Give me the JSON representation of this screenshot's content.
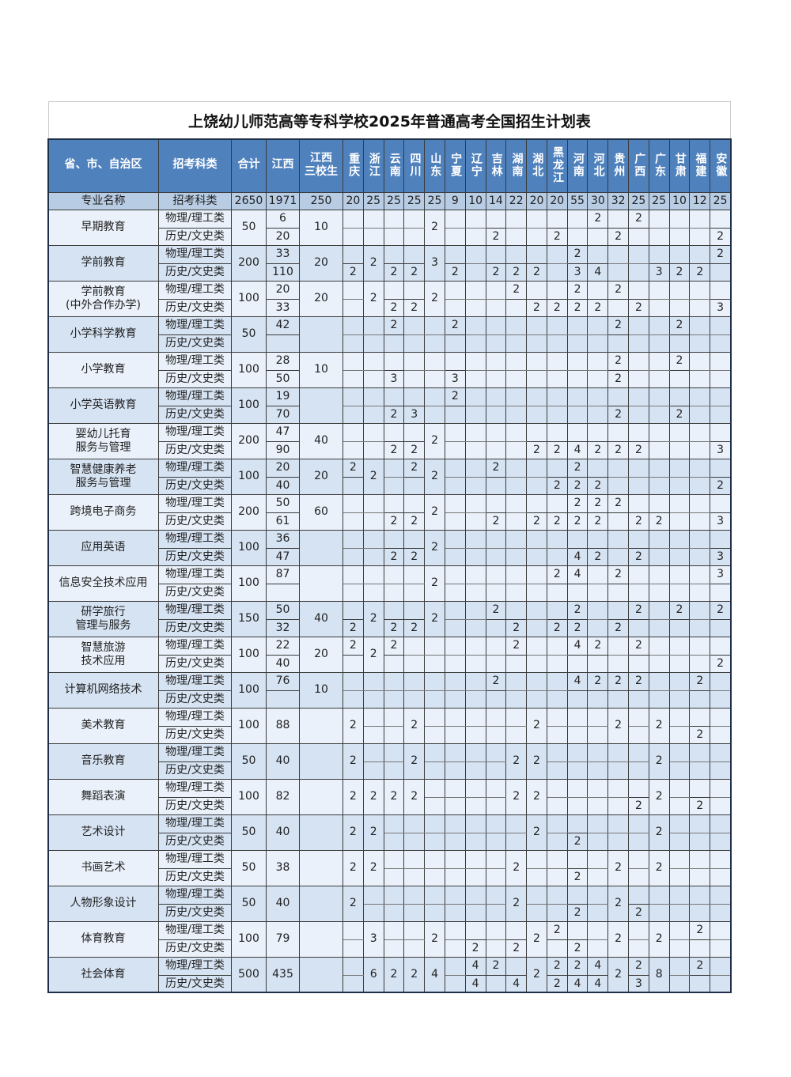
{
  "title": "上饶幼儿师范高等专科学校2025年普通高考全国招生计划表",
  "header": {
    "region": "省、市、自治区",
    "subject": "招考科类",
    "total": "合计",
    "jiangxi": "江西",
    "three_school": "江西\n三校生",
    "provinces": [
      "重庆",
      "浙江",
      "云南",
      "四川",
      "山东",
      "宁夏",
      "辽宁",
      "吉林",
      "湖南",
      "湖北",
      "黑龙江",
      "河南",
      "河北",
      "贵州",
      "广西",
      "广东",
      "甘肃",
      "福建",
      "安徽"
    ]
  },
  "summary": {
    "label": "专业名称",
    "subject": "招考科类",
    "total": 2650,
    "jiangxi": 1971,
    "three_school": 250,
    "provinces": [
      20,
      25,
      25,
      25,
      25,
      9,
      10,
      14,
      22,
      20,
      20,
      55,
      30,
      32,
      25,
      25,
      10,
      12,
      25
    ]
  },
  "subjects": [
    "物理/理工类",
    "历史/文史类"
  ],
  "majors": [
    {
      "name": "早期教育",
      "total": 50,
      "jiangxi": [
        6,
        20
      ],
      "three_school": 10,
      "cols": [
        null,
        null,
        null,
        null,
        2,
        null,
        null,
        [
          null,
          2
        ],
        null,
        null,
        [
          null,
          2
        ],
        null,
        [
          2,
          null
        ],
        [
          null,
          2
        ],
        [
          2,
          null
        ],
        null,
        null,
        null,
        [
          null,
          2
        ]
      ]
    },
    {
      "name": "学前教育",
      "total": 200,
      "jiangxi": [
        33,
        110
      ],
      "three_school": 20,
      "cols": [
        [
          null,
          2
        ],
        2,
        [
          null,
          2
        ],
        [
          null,
          2
        ],
        3,
        [
          null,
          2
        ],
        null,
        [
          null,
          2
        ],
        [
          null,
          2
        ],
        [
          null,
          2
        ],
        null,
        [
          2,
          3
        ],
        [
          null,
          4
        ],
        null,
        null,
        [
          null,
          3
        ],
        [
          null,
          2
        ],
        [
          null,
          2
        ],
        [
          2,
          null
        ]
      ]
    },
    {
      "name": "学前教育\n(中外合作办学)",
      "total": 100,
      "jiangxi": [
        20,
        33
      ],
      "three_school": 20,
      "cols": [
        null,
        2,
        [
          null,
          2
        ],
        [
          null,
          2
        ],
        2,
        null,
        null,
        null,
        [
          2,
          null
        ],
        [
          null,
          2
        ],
        [
          null,
          2
        ],
        [
          2,
          2
        ],
        [
          null,
          2
        ],
        [
          2,
          null
        ],
        [
          null,
          2
        ],
        null,
        null,
        null,
        [
          null,
          3
        ]
      ]
    },
    {
      "name": "小学科学教育",
      "total": 50,
      "jiangxi": [
        42,
        null
      ],
      "three_school": null,
      "cols": [
        null,
        null,
        [
          2,
          null
        ],
        null,
        null,
        [
          2,
          null
        ],
        null,
        null,
        null,
        null,
        null,
        null,
        null,
        [
          2,
          null
        ],
        null,
        null,
        [
          2,
          null
        ],
        null,
        null
      ]
    },
    {
      "name": "小学教育",
      "total": 100,
      "jiangxi": [
        28,
        50
      ],
      "three_school": 10,
      "cols": [
        null,
        null,
        [
          null,
          3
        ],
        null,
        null,
        [
          null,
          3
        ],
        null,
        null,
        null,
        null,
        null,
        null,
        null,
        [
          2,
          2
        ],
        null,
        null,
        [
          2,
          null
        ],
        null,
        null
      ]
    },
    {
      "name": "小学英语教育",
      "total": 100,
      "jiangxi": [
        19,
        70
      ],
      "three_school": null,
      "cols": [
        null,
        null,
        [
          null,
          2
        ],
        [
          null,
          3
        ],
        null,
        [
          2,
          null
        ],
        null,
        null,
        null,
        null,
        null,
        null,
        null,
        [
          null,
          2
        ],
        null,
        null,
        [
          null,
          2
        ],
        null,
        null
      ]
    },
    {
      "name": "婴幼儿托育\n服务与管理",
      "total": 200,
      "jiangxi": [
        47,
        90
      ],
      "three_school": 40,
      "cols": [
        null,
        null,
        [
          null,
          2
        ],
        [
          null,
          2
        ],
        2,
        null,
        null,
        null,
        null,
        [
          null,
          2
        ],
        [
          null,
          2
        ],
        [
          null,
          4
        ],
        [
          null,
          2
        ],
        [
          null,
          2
        ],
        [
          null,
          2
        ],
        null,
        null,
        null,
        [
          null,
          3
        ]
      ]
    },
    {
      "name": "智慧健康养老\n服务与管理",
      "total": 100,
      "jiangxi": [
        20,
        40
      ],
      "three_school": 20,
      "cols": [
        [
          2,
          null
        ],
        2,
        null,
        [
          2,
          null
        ],
        2,
        null,
        null,
        [
          2,
          null
        ],
        null,
        null,
        [
          null,
          2
        ],
        [
          2,
          2
        ],
        [
          null,
          2
        ],
        null,
        null,
        null,
        null,
        null,
        [
          null,
          2
        ]
      ]
    },
    {
      "name": "跨境电子商务",
      "total": 200,
      "jiangxi": [
        50,
        61
      ],
      "three_school": 60,
      "cols": [
        null,
        null,
        [
          null,
          2
        ],
        [
          null,
          2
        ],
        2,
        null,
        null,
        [
          null,
          2
        ],
        null,
        [
          null,
          2
        ],
        [
          null,
          2
        ],
        [
          2,
          2
        ],
        [
          2,
          2
        ],
        [
          2,
          null
        ],
        [
          null,
          2
        ],
        [
          null,
          2
        ],
        null,
        null,
        [
          null,
          3
        ]
      ]
    },
    {
      "name": "应用英语",
      "total": 100,
      "jiangxi": [
        36,
        47
      ],
      "three_school": null,
      "cols": [
        null,
        null,
        [
          null,
          2
        ],
        [
          null,
          2
        ],
        2,
        null,
        null,
        null,
        null,
        null,
        null,
        [
          null,
          4
        ],
        [
          null,
          2
        ],
        null,
        [
          null,
          2
        ],
        null,
        null,
        null,
        [
          null,
          3
        ]
      ]
    },
    {
      "name": "信息安全技术应用",
      "total": 100,
      "jiangxi": [
        87,
        null
      ],
      "three_school": null,
      "cols": [
        null,
        null,
        null,
        null,
        2,
        null,
        null,
        null,
        null,
        null,
        [
          2,
          null
        ],
        [
          4,
          null
        ],
        null,
        [
          2,
          null
        ],
        null,
        null,
        null,
        null,
        [
          3,
          null
        ]
      ]
    },
    {
      "name": "研学旅行\n管理与服务",
      "total": 150,
      "jiangxi": [
        50,
        32
      ],
      "three_school": 40,
      "cols": [
        [
          null,
          2
        ],
        2,
        [
          null,
          2
        ],
        [
          null,
          2
        ],
        2,
        null,
        null,
        [
          2,
          null
        ],
        [
          null,
          2
        ],
        null,
        [
          null,
          2
        ],
        [
          2,
          2
        ],
        null,
        [
          null,
          2
        ],
        [
          2,
          null
        ],
        null,
        [
          2,
          null
        ],
        null,
        [
          2,
          null
        ]
      ]
    },
    {
      "name": "智慧旅游\n技术应用",
      "total": 100,
      "jiangxi": [
        22,
        40
      ],
      "three_school": 20,
      "cols": [
        [
          2,
          null
        ],
        2,
        [
          2,
          null
        ],
        null,
        null,
        null,
        null,
        null,
        [
          2,
          null
        ],
        null,
        null,
        [
          4,
          null
        ],
        [
          2,
          null
        ],
        null,
        [
          2,
          null
        ],
        null,
        null,
        null,
        [
          null,
          2
        ]
      ]
    },
    {
      "name": "计算机网络技术",
      "total": 100,
      "jiangxi": [
        76,
        null
      ],
      "three_school": 10,
      "cols": [
        null,
        null,
        null,
        null,
        null,
        null,
        null,
        [
          2,
          null
        ],
        null,
        null,
        null,
        [
          4,
          null
        ],
        [
          2,
          null
        ],
        [
          2,
          null
        ],
        [
          2,
          null
        ],
        null,
        null,
        [
          2,
          null
        ],
        null
      ]
    },
    {
      "name": "美术教育",
      "total": 100,
      "jiangxi": 88,
      "three_school": null,
      "cols": [
        2,
        null,
        null,
        2,
        null,
        null,
        null,
        null,
        null,
        2,
        null,
        null,
        null,
        2,
        null,
        2,
        null,
        [
          null,
          2
        ],
        null
      ]
    },
    {
      "name": "音乐教育",
      "total": 50,
      "jiangxi": 40,
      "three_school": null,
      "cols": [
        2,
        null,
        null,
        2,
        null,
        null,
        null,
        null,
        2,
        2,
        null,
        null,
        null,
        null,
        null,
        2,
        null,
        null,
        null
      ]
    },
    {
      "name": "舞蹈表演",
      "total": 100,
      "jiangxi": 82,
      "three_school": null,
      "cols": [
        2,
        2,
        2,
        2,
        null,
        null,
        null,
        null,
        2,
        2,
        null,
        null,
        null,
        null,
        [
          null,
          2
        ],
        2,
        null,
        [
          null,
          2
        ],
        null
      ]
    },
    {
      "name": "艺术设计",
      "total": 50,
      "jiangxi": 40,
      "three_school": null,
      "cols": [
        2,
        2,
        null,
        null,
        null,
        null,
        null,
        null,
        null,
        2,
        null,
        [
          null,
          2
        ],
        null,
        null,
        null,
        2,
        null,
        null,
        null
      ]
    },
    {
      "name": "书画艺术",
      "total": 50,
      "jiangxi": 38,
      "three_school": null,
      "cols": [
        2,
        2,
        null,
        null,
        null,
        null,
        null,
        null,
        2,
        null,
        null,
        [
          null,
          2
        ],
        null,
        2,
        null,
        2,
        null,
        null,
        null
      ]
    },
    {
      "name": "人物形象设计",
      "total": 50,
      "jiangxi": 40,
      "three_school": null,
      "cols": [
        2,
        null,
        null,
        null,
        null,
        null,
        null,
        null,
        2,
        null,
        null,
        [
          null,
          2
        ],
        null,
        2,
        [
          null,
          2
        ],
        null,
        null,
        null,
        null
      ]
    },
    {
      "name": "体育教育",
      "total": 100,
      "jiangxi": 79,
      "three_school": null,
      "cols": [
        null,
        3,
        null,
        null,
        2,
        null,
        [
          null,
          2
        ],
        null,
        [
          null,
          2
        ],
        2,
        [
          2,
          null
        ],
        [
          null,
          2
        ],
        null,
        2,
        null,
        2,
        null,
        [
          2,
          null
        ],
        null
      ]
    },
    {
      "name": "社会体育",
      "total": 500,
      "jiangxi": 435,
      "three_school": null,
      "cols": [
        null,
        6,
        2,
        2,
        4,
        null,
        [
          4,
          4
        ],
        [
          2,
          null
        ],
        [
          null,
          4
        ],
        2,
        [
          2,
          2
        ],
        [
          2,
          4
        ],
        [
          4,
          4
        ],
        2,
        [
          2,
          3
        ],
        8,
        null,
        [
          2,
          null
        ],
        null
      ]
    }
  ]
}
